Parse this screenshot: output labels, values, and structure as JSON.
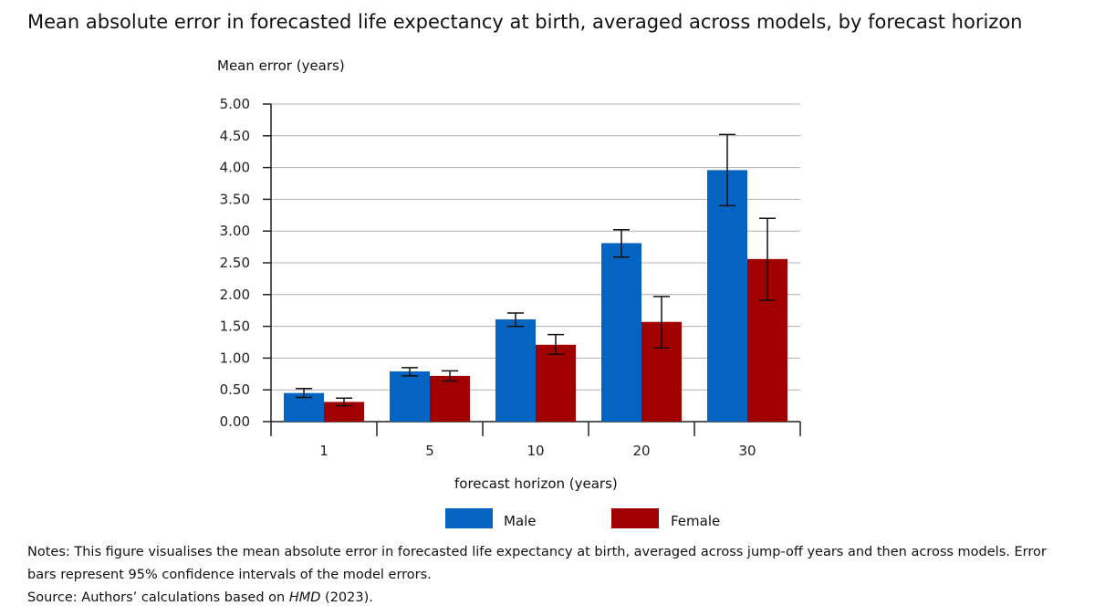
{
  "chart_data": {
    "type": "bar",
    "title": "Mean absolute error in forecasted life expectancy at birth, averaged across models, by forecast horizon",
    "ylabel": "Mean  error  (years)",
    "xlabel": "forecast horizon (years)",
    "categories": [
      "1",
      "5",
      "10",
      "20",
      "30"
    ],
    "ylim": [
      0,
      5
    ],
    "yticks": [
      "0.00",
      "0.50",
      "1.00",
      "1.50",
      "2.00",
      "2.50",
      "3.00",
      "3.50",
      "4.00",
      "4.50",
      "5.00"
    ],
    "grid": true,
    "series": [
      {
        "name": "Male",
        "color": "#0563c1",
        "values": [
          0.45,
          0.79,
          1.61,
          2.81,
          3.96
        ],
        "error_low": [
          0.38,
          0.72,
          1.5,
          2.59,
          3.4
        ],
        "error_high": [
          0.52,
          0.85,
          1.71,
          3.02,
          4.52
        ]
      },
      {
        "name": "Female",
        "color": "#a00000",
        "values": [
          0.31,
          0.72,
          1.21,
          1.57,
          2.56
        ],
        "error_low": [
          0.25,
          0.64,
          1.06,
          1.16,
          1.91
        ],
        "error_high": [
          0.37,
          0.8,
          1.37,
          1.97,
          3.2
        ]
      }
    ],
    "legend_position": "bottom"
  },
  "notes": {
    "line1": "Notes: This figure visualises the mean absolute error in forecasted life expectancy at birth, averaged across jump-off years and then across models. Error bars represent 95% confidence intervals of the model errors.",
    "source_prefix": "Source: Authors’ calculations based on ",
    "source_ref": "HMD",
    "source_suffix": " (2023)."
  }
}
